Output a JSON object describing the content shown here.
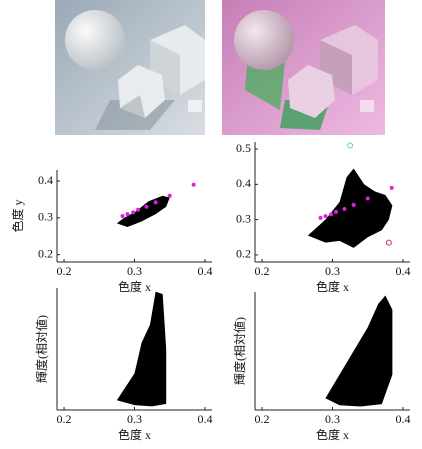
{
  "chart_data": [
    {
      "type": "scatter",
      "x_label": "色度 x",
      "y_label": "色度 y",
      "xlim": [
        0.19,
        0.41
      ],
      "xticks": [
        0.2,
        0.3,
        0.4
      ],
      "ylim": [
        0.18,
        0.43
      ],
      "yticks": [
        0.2,
        0.3,
        0.4
      ],
      "series": [
        {
          "marker": "polygon",
          "color": "#000000",
          "x": [
            0.275,
            0.29,
            0.31,
            0.33,
            0.345,
            0.35,
            0.34,
            0.32,
            0.3,
            0.285
          ],
          "values": [
            0.285,
            0.275,
            0.29,
            0.31,
            0.33,
            0.355,
            0.36,
            0.345,
            0.315,
            0.3
          ]
        },
        {
          "marker": "dot",
          "color": "#e020e0",
          "x": [
            0.283,
            0.29,
            0.298,
            0.305,
            0.317,
            0.33,
            0.35,
            0.384
          ],
          "values": [
            0.305,
            0.31,
            0.315,
            0.322,
            0.33,
            0.342,
            0.36,
            0.39
          ]
        }
      ]
    },
    {
      "type": "scatter",
      "x_label": "色度 x",
      "xlim": [
        0.19,
        0.41
      ],
      "xticks": [
        0.2,
        0.3,
        0.4
      ],
      "ylim": [
        0.18,
        0.52
      ],
      "yticks": [
        0.2,
        0.3,
        0.4,
        0.5
      ],
      "series": [
        {
          "marker": "polygon",
          "color": "#000000",
          "x": [
            0.265,
            0.29,
            0.31,
            0.33,
            0.35,
            0.37,
            0.38,
            0.385,
            0.375,
            0.36,
            0.345,
            0.33,
            0.32,
            0.31,
            0.29
          ],
          "values": [
            0.255,
            0.235,
            0.24,
            0.22,
            0.25,
            0.27,
            0.3,
            0.34,
            0.37,
            0.38,
            0.4,
            0.445,
            0.42,
            0.35,
            0.3
          ]
        },
        {
          "marker": "dot",
          "color": "#e020e0",
          "x": [
            0.283,
            0.29,
            0.298,
            0.305,
            0.317,
            0.33,
            0.35,
            0.384
          ],
          "values": [
            0.305,
            0.31,
            0.315,
            0.322,
            0.33,
            0.342,
            0.36,
            0.39
          ]
        },
        {
          "marker": "ring",
          "color": "#60d0c0",
          "x": [
            0.325
          ],
          "values": [
            0.51
          ]
        },
        {
          "marker": "ring",
          "color": "#d03040",
          "x": [
            0.38
          ],
          "values": [
            0.235
          ]
        }
      ]
    },
    {
      "type": "scatter",
      "x_label": "色度 x",
      "y_label": "輝度(相対値)",
      "xlim": [
        0.19,
        0.41
      ],
      "xticks": [
        0.2,
        0.3,
        0.4
      ],
      "ylim": [
        0,
        1
      ],
      "series": [
        {
          "marker": "polygon",
          "color": "#000000",
          "x": [
            0.275,
            0.3,
            0.325,
            0.345,
            0.345,
            0.34,
            0.33,
            0.322,
            0.31,
            0.3
          ],
          "values": [
            0.08,
            0.04,
            0.03,
            0.05,
            0.5,
            0.95,
            0.97,
            0.7,
            0.55,
            0.3
          ]
        }
      ]
    },
    {
      "type": "scatter",
      "x_label": "色度 x",
      "y_label": "輝度(相対値)",
      "xlim": [
        0.19,
        0.41
      ],
      "xticks": [
        0.2,
        0.3,
        0.4
      ],
      "ylim": [
        0,
        1
      ],
      "series": [
        {
          "marker": "polygon",
          "color": "#000000",
          "x": [
            0.29,
            0.31,
            0.34,
            0.37,
            0.385,
            0.385,
            0.375,
            0.365,
            0.35,
            0.33,
            0.31
          ],
          "values": [
            0.1,
            0.04,
            0.03,
            0.05,
            0.3,
            0.85,
            0.97,
            0.9,
            0.7,
            0.5,
            0.3
          ]
        }
      ]
    }
  ]
}
